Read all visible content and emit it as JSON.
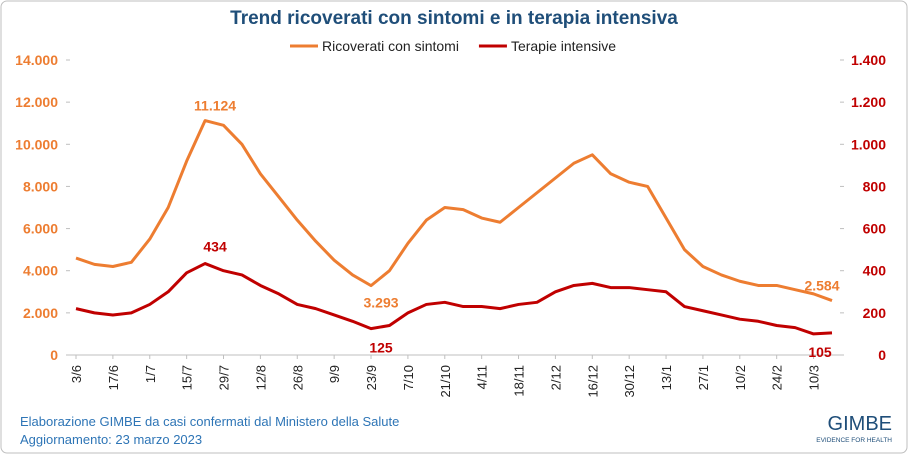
{
  "chart_data": {
    "type": "line",
    "title": "Trend ricoverati con sintomi e in terapia intensiva",
    "categories": [
      "3/6",
      null,
      "17/6",
      null,
      "1/7",
      null,
      "15/7",
      null,
      "29/7",
      null,
      "12/8",
      null,
      "26/8",
      null,
      "9/9",
      null,
      "23/9",
      null,
      "7/10",
      null,
      "21/10",
      null,
      "4/11",
      null,
      "18/11",
      null,
      "2/12",
      null,
      "16/12",
      null,
      "30/12",
      null,
      "13/1",
      null,
      "27/1",
      null,
      "10/2",
      null,
      "24/2",
      null,
      "10/3",
      null
    ],
    "series": [
      {
        "name": "Ricoverati con sintomi",
        "color": "#ed7d31",
        "axis": "y",
        "values": [
          4600,
          4300,
          4200,
          4400,
          5500,
          7000,
          9200,
          11124,
          10900,
          10000,
          8600,
          7500,
          6400,
          5400,
          4500,
          3800,
          3293,
          4000,
          5300,
          6400,
          7000,
          6900,
          6500,
          6300,
          7000,
          7700,
          8400,
          9100,
          9500,
          8600,
          8200,
          8000,
          6500,
          5000,
          4200,
          3800,
          3500,
          3300,
          3300,
          3100,
          2900,
          2584
        ],
        "value_labels": [
          null,
          null,
          null,
          null,
          null,
          null,
          null,
          "11.124",
          null,
          null,
          null,
          null,
          null,
          null,
          null,
          null,
          "3.293",
          null,
          null,
          null,
          null,
          null,
          null,
          null,
          null,
          null,
          null,
          null,
          null,
          null,
          null,
          null,
          null,
          null,
          null,
          null,
          null,
          null,
          null,
          null,
          null,
          "2.584"
        ]
      },
      {
        "name": "Terapie intensive",
        "color": "#c00000",
        "axis": "y2",
        "values": [
          220,
          200,
          190,
          200,
          240,
          300,
          390,
          434,
          400,
          380,
          330,
          290,
          240,
          220,
          190,
          160,
          125,
          140,
          200,
          240,
          250,
          230,
          230,
          220,
          240,
          250,
          300,
          330,
          340,
          320,
          320,
          310,
          300,
          230,
          210,
          190,
          170,
          160,
          140,
          130,
          100,
          105
        ]
      }
    ],
    "ylim": [
      0,
      14000
    ],
    "yticks": [
      0,
      {
        "value": 2000,
        "label": "2.000"
      },
      {
        "value": 4000,
        "label": "4.000"
      },
      {
        "value": 6000,
        "label": "6.000"
      },
      {
        "value": 8000,
        "label": "8.000"
      },
      {
        "value": 10000,
        "label": "10.000"
      },
      {
        "value": 12000,
        "label": "12.000"
      },
      {
        "value": 14000,
        "label": "14.000"
      }
    ],
    "y2lim": [
      0,
      1400
    ],
    "y2ticks": [
      0,
      200,
      400,
      600,
      800,
      {
        "value": 1000,
        "label": "1.000"
      },
      {
        "value": 1200,
        "label": "1.200"
      },
      {
        "value": 1400,
        "label": "1.400"
      }
    ],
    "legend": "top"
  },
  "footer": {
    "source": "Elaborazione GIMBE da casi confermati dal Ministero della Salute",
    "updated": "Aggiornamento: 23 marzo 2023",
    "logo": "GIMBE",
    "tagline": "EVIDENCE FOR HEALTH"
  }
}
